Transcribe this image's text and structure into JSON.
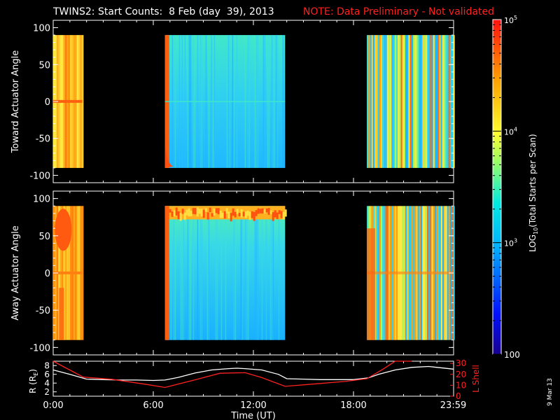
{
  "title": {
    "main": "TWINS2: Start Counts:  8 Feb (day  39), 2013",
    "note": "NOTE: Data Preliminary - Not validated"
  },
  "date_stamp": "9 Mar 13",
  "colors": {
    "background": "#000000",
    "note": "#ff2020",
    "trace_white": "#ffffff",
    "trace_red": "#ff2020",
    "colormap": [
      "#0000a0",
      "#0040ff",
      "#00c8ff",
      "#40e0c0",
      "#ffff40",
      "#ff9a00",
      "#ff3000"
    ]
  },
  "chart_data": [
    {
      "type": "heatmap",
      "panel": "toward",
      "ylabel": "Toward Actuator Angle",
      "ylim": [
        -110,
        110
      ],
      "yticks": [
        100,
        50,
        0,
        -50,
        -100
      ],
      "xlim": [
        0,
        24
      ],
      "angle_range": [
        -90,
        90
      ],
      "coverage_hours": [
        [
          0,
          1.75
        ],
        [
          6.7,
          13.9
        ],
        [
          18.8,
          24
        ]
      ],
      "dominant_level": {
        "0-1.75": "yellow-orange",
        "6.7-13.9": "cyan",
        "18.8-24": "mixed yellow/cyan"
      }
    },
    {
      "type": "heatmap",
      "panel": "away",
      "ylabel": "Away Actuator Angle",
      "ylim": [
        -110,
        110
      ],
      "yticks": [
        100,
        50,
        0,
        -50,
        -100
      ],
      "xlim": [
        0,
        24
      ],
      "angle_range": [
        -90,
        90
      ],
      "coverage_hours": [
        [
          0,
          1.75
        ],
        [
          6.7,
          13.9
        ],
        [
          18.8,
          24
        ]
      ],
      "hotspots": [
        "0.3-0.9 h near 30-90 deg",
        "6.7-13.9 h near 75-90 deg"
      ]
    },
    {
      "type": "line",
      "panel": "orbit",
      "xlabel": "Time (UT)",
      "xticks": [
        "0:00",
        "6:00",
        "12:00",
        "18:00",
        "23:59"
      ],
      "xtick_hours": [
        0,
        6,
        12,
        18,
        23.98
      ],
      "ylabel_left": "R (R",
      "ylabel_left_sub": "E",
      "ylabel_left_close": ")",
      "ylim_left": [
        1,
        9
      ],
      "yticks_left": [
        "8",
        "6",
        "4",
        "2"
      ],
      "ylabel_right": "L Shell",
      "ylim_right": [
        0,
        32
      ],
      "yticks_right": [
        "30",
        "20",
        "10",
        "0"
      ],
      "series": [
        {
          "axis": "left",
          "color": "#ffffff",
          "x": [
            0,
            1,
            2,
            3,
            4,
            5,
            6,
            6.7,
            7.5,
            8.5,
            9.5,
            10.5,
            11,
            11.5,
            12.5,
            13.5,
            14,
            15,
            16,
            17,
            18,
            18.9,
            19.5,
            20.5,
            21.5,
            22.5,
            23,
            23.98
          ],
          "y": [
            7.0,
            6.0,
            4.9,
            4.8,
            4.7,
            4.7,
            4.6,
            4.7,
            5.3,
            6.3,
            7.0,
            7.3,
            7.4,
            7.3,
            7.0,
            6.0,
            5.0,
            4.9,
            4.8,
            4.8,
            4.8,
            5.2,
            6.0,
            7.0,
            7.6,
            7.8,
            7.6,
            7.2
          ]
        },
        {
          "axis": "right",
          "color": "#ff2020",
          "x": [
            0,
            1.8,
            3.5,
            5.5,
            6.7,
            8.5,
            10,
            11.5,
            12.5,
            13.9,
            15.5,
            17.5,
            18.8,
            19.8,
            20.5,
            21.5
          ],
          "y": [
            32,
            17.5,
            15.5,
            11,
            8,
            15,
            21,
            21.5,
            17,
            9,
            11,
            13.5,
            16,
            25,
            32,
            32
          ]
        }
      ]
    },
    {
      "type": "heatmap",
      "panel": "colorbar",
      "ylabel_pre": "LOG",
      "ylabel_sub": "10",
      "ylabel_post": "(Total Starts per Scan)",
      "scale": "log",
      "range": [
        100,
        100000
      ],
      "ticks": [
        {
          "value": 100000,
          "label_base": "10",
          "label_exp": "5"
        },
        {
          "value": 10000,
          "label_base": "10",
          "label_exp": "4"
        },
        {
          "value": 1000,
          "label_base": "10",
          "label_exp": "3"
        },
        {
          "value": 100,
          "label_base": "100",
          "label_exp": ""
        }
      ]
    }
  ]
}
